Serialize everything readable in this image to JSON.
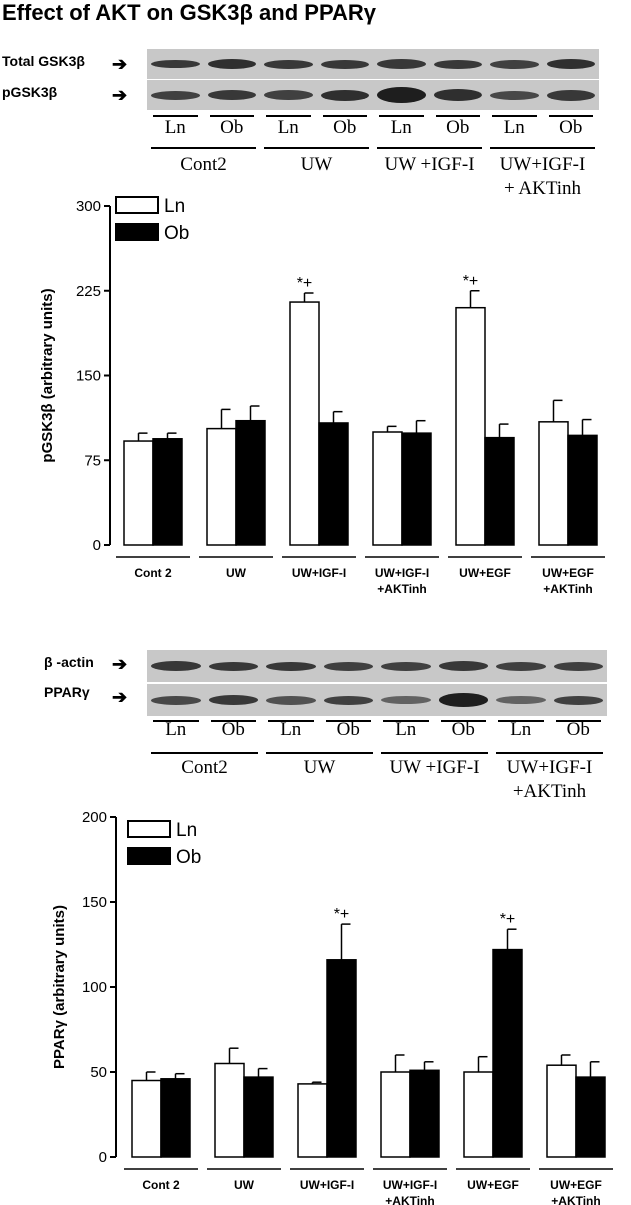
{
  "title": "Effect of  AKT on GSK3β and PPARγ",
  "blot_top": {
    "rows": [
      "Total GSK3β",
      "pGSK3β"
    ],
    "lanes": [
      "Ln",
      "Ob",
      "Ln",
      "Ob",
      "Ln",
      "Ob",
      "Ln",
      "Ob"
    ],
    "groups": [
      "Cont2",
      "UW",
      "UW +IGF-I",
      "UW+IGF-I\n+ AKTinh"
    ]
  },
  "blot_bottom": {
    "rows": [
      "β -actin",
      "PPARγ"
    ],
    "lanes": [
      "Ln",
      "Ob",
      "Ln",
      "Ob",
      "Ln",
      "Ob",
      "Ln",
      "Ob"
    ],
    "groups": [
      "Cont2",
      "UW",
      "UW +IGF-I",
      "UW+IGF-I\n+AKTinh"
    ]
  },
  "colors": {
    "ln": "#ffffff",
    "ob": "#000000",
    "blot_bg": "#c8c8c8",
    "band": "#1e1e1e"
  },
  "chart_data": [
    {
      "type": "bar",
      "ylabel": "pGSK3β (arbitrary units)",
      "ylim": [
        0,
        300
      ],
      "yticks": [
        0,
        75,
        150,
        225,
        300
      ],
      "categories": [
        "Cont 2",
        "UW",
        "UW+IGF-I",
        "UW+IGF-I\n+AKTinh",
        "UW+EGF",
        "UW+EGF\n+AKTinh"
      ],
      "legend": [
        "Ln",
        "Ob"
      ],
      "legend_position": "top-left",
      "series": [
        {
          "name": "Ln",
          "values": [
            92,
            103,
            215,
            100,
            210,
            109
          ],
          "errors": [
            7,
            17,
            8,
            5,
            15,
            19
          ]
        },
        {
          "name": "Ob",
          "values": [
            94,
            110,
            108,
            99,
            95,
            97
          ],
          "errors": [
            5,
            13,
            10,
            11,
            12,
            14
          ]
        }
      ],
      "annotations": [
        {
          "text": "*+",
          "category": 2,
          "series": "Ln"
        },
        {
          "text": "*+",
          "category": 4,
          "series": "Ln"
        }
      ]
    },
    {
      "type": "bar",
      "ylabel": "PPARγ (arbitrary units)",
      "ylim": [
        0,
        200
      ],
      "yticks": [
        0,
        50,
        100,
        150,
        200
      ],
      "categories": [
        "Cont 2",
        "UW",
        "UW+IGF-I",
        "UW+IGF-I\n+AKTinh",
        "UW+EGF",
        "UW+EGF\n+AKTinh"
      ],
      "legend": [
        "Ln",
        "Ob"
      ],
      "legend_position": "top-left",
      "series": [
        {
          "name": "Ln",
          "values": [
            45,
            55,
            43,
            50,
            50,
            54
          ],
          "errors": [
            5,
            9,
            1,
            10,
            9,
            6
          ]
        },
        {
          "name": "Ob",
          "values": [
            46,
            47,
            116,
            51,
            122,
            47
          ],
          "errors": [
            3,
            5,
            21,
            5,
            12,
            9
          ]
        }
      ],
      "annotations": [
        {
          "text": "*+",
          "category": 2,
          "series": "Ob"
        },
        {
          "text": "*+",
          "category": 4,
          "series": "Ob"
        }
      ]
    }
  ]
}
